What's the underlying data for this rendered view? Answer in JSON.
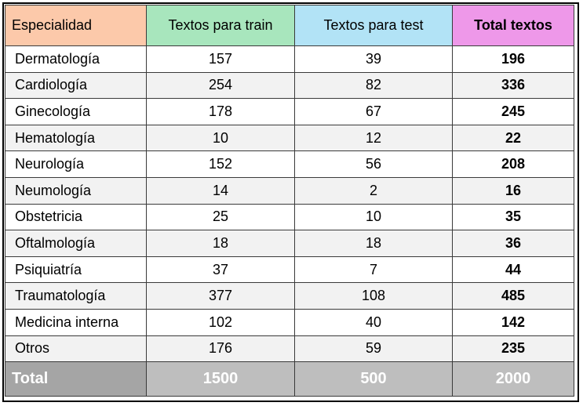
{
  "table": {
    "headers": [
      "Especialidad",
      "Textos para train",
      "Textos para test",
      "Total textos"
    ],
    "rows": [
      {
        "name": "Dermatología",
        "train": "157",
        "test": "39",
        "total": "196"
      },
      {
        "name": "Cardiología",
        "train": "254",
        "test": "82",
        "total": "336"
      },
      {
        "name": "Ginecología",
        "train": "178",
        "test": "67",
        "total": "245"
      },
      {
        "name": "Hematología",
        "train": "10",
        "test": "12",
        "total": "22"
      },
      {
        "name": "Neurología",
        "train": "152",
        "test": "56",
        "total": "208"
      },
      {
        "name": "Neumología",
        "train": "14",
        "test": "2",
        "total": "16"
      },
      {
        "name": "Obstetricia",
        "train": "25",
        "test": "10",
        "total": "35"
      },
      {
        "name": "Oftalmología",
        "train": "18",
        "test": "18",
        "total": "36"
      },
      {
        "name": "Psiquiatría",
        "train": "37",
        "test": "7",
        "total": "44"
      },
      {
        "name": "Traumatología",
        "train": "377",
        "test": "108",
        "total": "485"
      },
      {
        "name": "Medicina interna",
        "train": "102",
        "test": "40",
        "total": "142"
      },
      {
        "name": "Otros",
        "train": "176",
        "test": "59",
        "total": "235"
      }
    ],
    "footer": {
      "name": "Total",
      "train": "1500",
      "test": "500",
      "total": "2000"
    },
    "colors": {
      "header_especialidad": "#fcc9aa",
      "header_train": "#a8e6bd",
      "header_test": "#b2e3f6",
      "header_total": "#ee98e9",
      "footer_bg": "#bebebe",
      "footer_label_bg": "#a5a5a5"
    }
  }
}
